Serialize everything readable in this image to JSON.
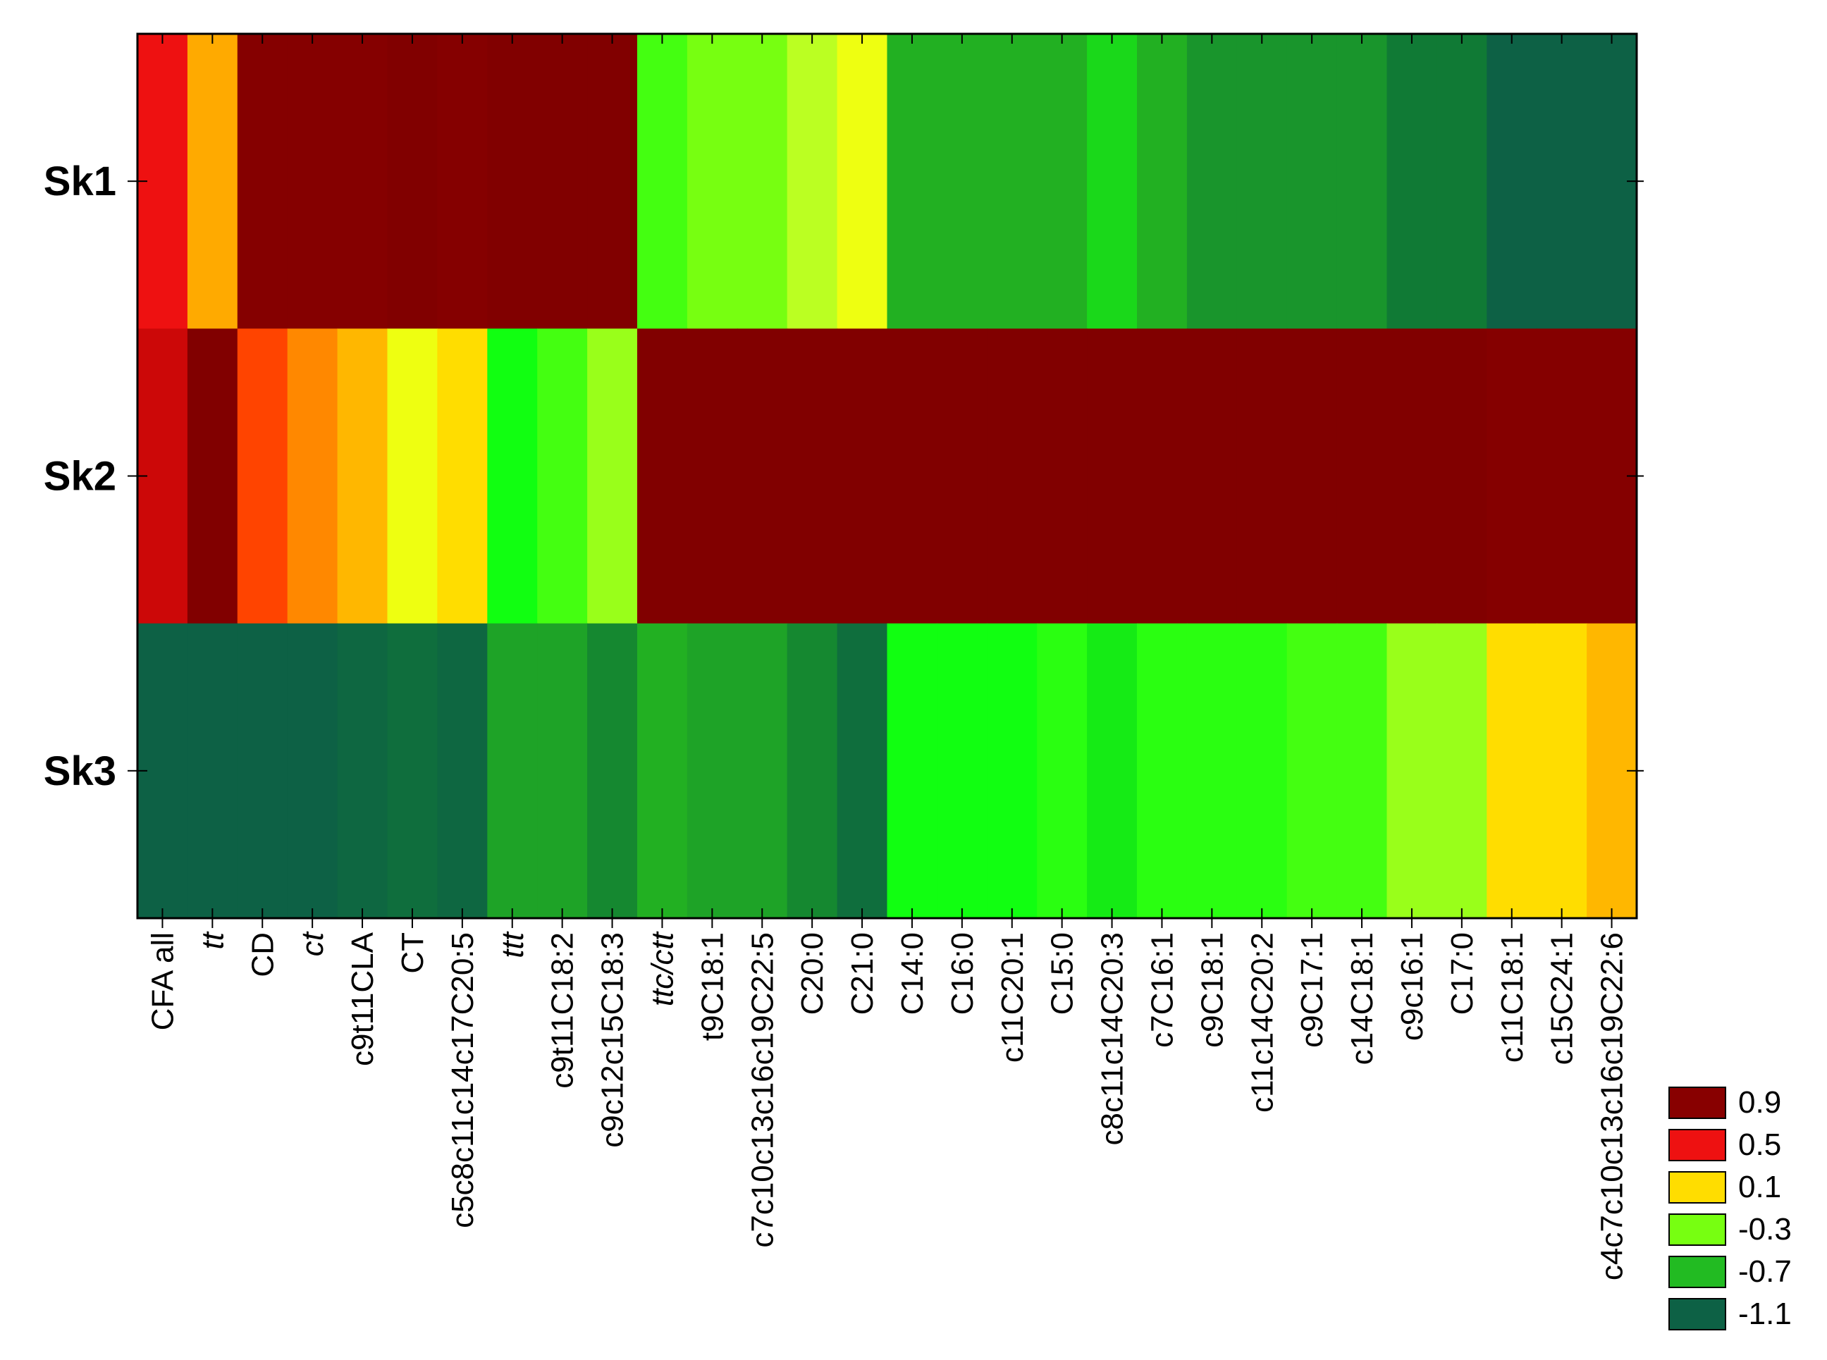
{
  "chart_data": {
    "type": "heatmap",
    "rows": [
      "Sk1",
      "Sk2",
      "Sk3"
    ],
    "columns": [
      {
        "label": "CFA all",
        "italic": false
      },
      {
        "label": "tt",
        "italic": true
      },
      {
        "label": "CD",
        "italic": false
      },
      {
        "label": "ct",
        "italic": true
      },
      {
        "label": "c9t11CLA",
        "italic": false
      },
      {
        "label": "CT",
        "italic": false
      },
      {
        "label": "c5c8c11c14c17C20:5",
        "italic": false
      },
      {
        "label": "ttt",
        "italic": true
      },
      {
        "label": "c9t11C18:2",
        "italic": false
      },
      {
        "label": "c9c12c15C18:3",
        "italic": false
      },
      {
        "label": "ttc/ctt",
        "italic": true
      },
      {
        "label": "t9C18:1",
        "italic": false
      },
      {
        "label": "c7c10c13c16c19C22:5",
        "italic": false
      },
      {
        "label": "C20:0",
        "italic": false
      },
      {
        "label": "C21:0",
        "italic": false
      },
      {
        "label": "C14:0",
        "italic": false
      },
      {
        "label": "C16:0",
        "italic": false
      },
      {
        "label": "c11C20:1",
        "italic": false
      },
      {
        "label": "C15:0",
        "italic": false
      },
      {
        "label": "c8c11c14C20:3",
        "italic": false
      },
      {
        "label": "c7C16:1",
        "italic": false
      },
      {
        "label": "c9C18:1",
        "italic": false
      },
      {
        "label": "c11c14C20:2",
        "italic": false
      },
      {
        "label": "c9C17:1",
        "italic": false
      },
      {
        "label": "c14C18:1",
        "italic": false
      },
      {
        "label": "c9c16:1",
        "italic": false
      },
      {
        "label": "C17:0",
        "italic": false
      },
      {
        "label": "c11C18:1",
        "italic": false
      },
      {
        "label": "c15C24:1",
        "italic": false
      },
      {
        "label": "c4c7c10c13c16c19C22:6",
        "italic": false
      }
    ],
    "values": [
      [
        0.6,
        0.3,
        0.95,
        0.95,
        0.95,
        1.0,
        0.95,
        1.0,
        1.0,
        1.0,
        -0.4,
        -0.3,
        -0.3,
        -0.1,
        0.0,
        -0.7,
        -0.7,
        -0.7,
        -0.7,
        -0.6,
        -0.7,
        -0.8,
        -0.8,
        -0.8,
        -0.8,
        -0.9,
        -0.9,
        -1.1,
        -1.1,
        -1.1
      ],
      [
        0.8,
        1.0,
        0.5,
        0.4,
        0.25,
        0.0,
        0.1,
        -0.5,
        -0.4,
        -0.2,
        1.0,
        1.0,
        1.0,
        1.0,
        1.0,
        1.0,
        1.0,
        1.0,
        1.0,
        1.0,
        1.0,
        1.0,
        1.0,
        1.0,
        1.0,
        1.0,
        1.0,
        0.95,
        0.95,
        0.95
      ],
      [
        -1.1,
        -1.1,
        -1.1,
        -1.1,
        -1.05,
        -1.0,
        -1.05,
        -0.75,
        -0.75,
        -0.85,
        -0.7,
        -0.75,
        -0.75,
        -0.85,
        -1.0,
        -0.5,
        -0.5,
        -0.5,
        -0.45,
        -0.55,
        -0.45,
        -0.45,
        -0.45,
        -0.4,
        -0.4,
        -0.2,
        -0.2,
        0.1,
        0.1,
        0.25
      ]
    ],
    "color_scale": {
      "levels": [
        {
          "label": "0.9",
          "color": "#880000"
        },
        {
          "label": "0.5",
          "color": "#ee1111"
        },
        {
          "label": "0.1",
          "color": "#ffdd00"
        },
        {
          "label": "-0.3",
          "color": "#77ff11"
        },
        {
          "label": "-0.7",
          "color": "#22bb22"
        },
        {
          "label": "-1.1",
          "color": "#0d6145"
        }
      ],
      "stops": [
        {
          "value": -1.1,
          "color": "#0d6145"
        },
        {
          "value": -0.9,
          "color": "#107a35"
        },
        {
          "value": -0.7,
          "color": "#22b022"
        },
        {
          "value": -0.5,
          "color": "#11ff11"
        },
        {
          "value": -0.3,
          "color": "#77ff11"
        },
        {
          "value": -0.1,
          "color": "#bbff22"
        },
        {
          "value": 0.0,
          "color": "#eeff11"
        },
        {
          "value": 0.1,
          "color": "#ffdd00"
        },
        {
          "value": 0.3,
          "color": "#ffaa00"
        },
        {
          "value": 0.4,
          "color": "#ff8800"
        },
        {
          "value": 0.5,
          "color": "#ff4400"
        },
        {
          "value": 0.6,
          "color": "#ee1111"
        },
        {
          "value": 0.8,
          "color": "#cc0808"
        },
        {
          "value": 0.9,
          "color": "#880000"
        },
        {
          "value": 1.1,
          "color": "#7a0000"
        }
      ]
    },
    "legend_position": "bottom-right",
    "grid": false
  }
}
